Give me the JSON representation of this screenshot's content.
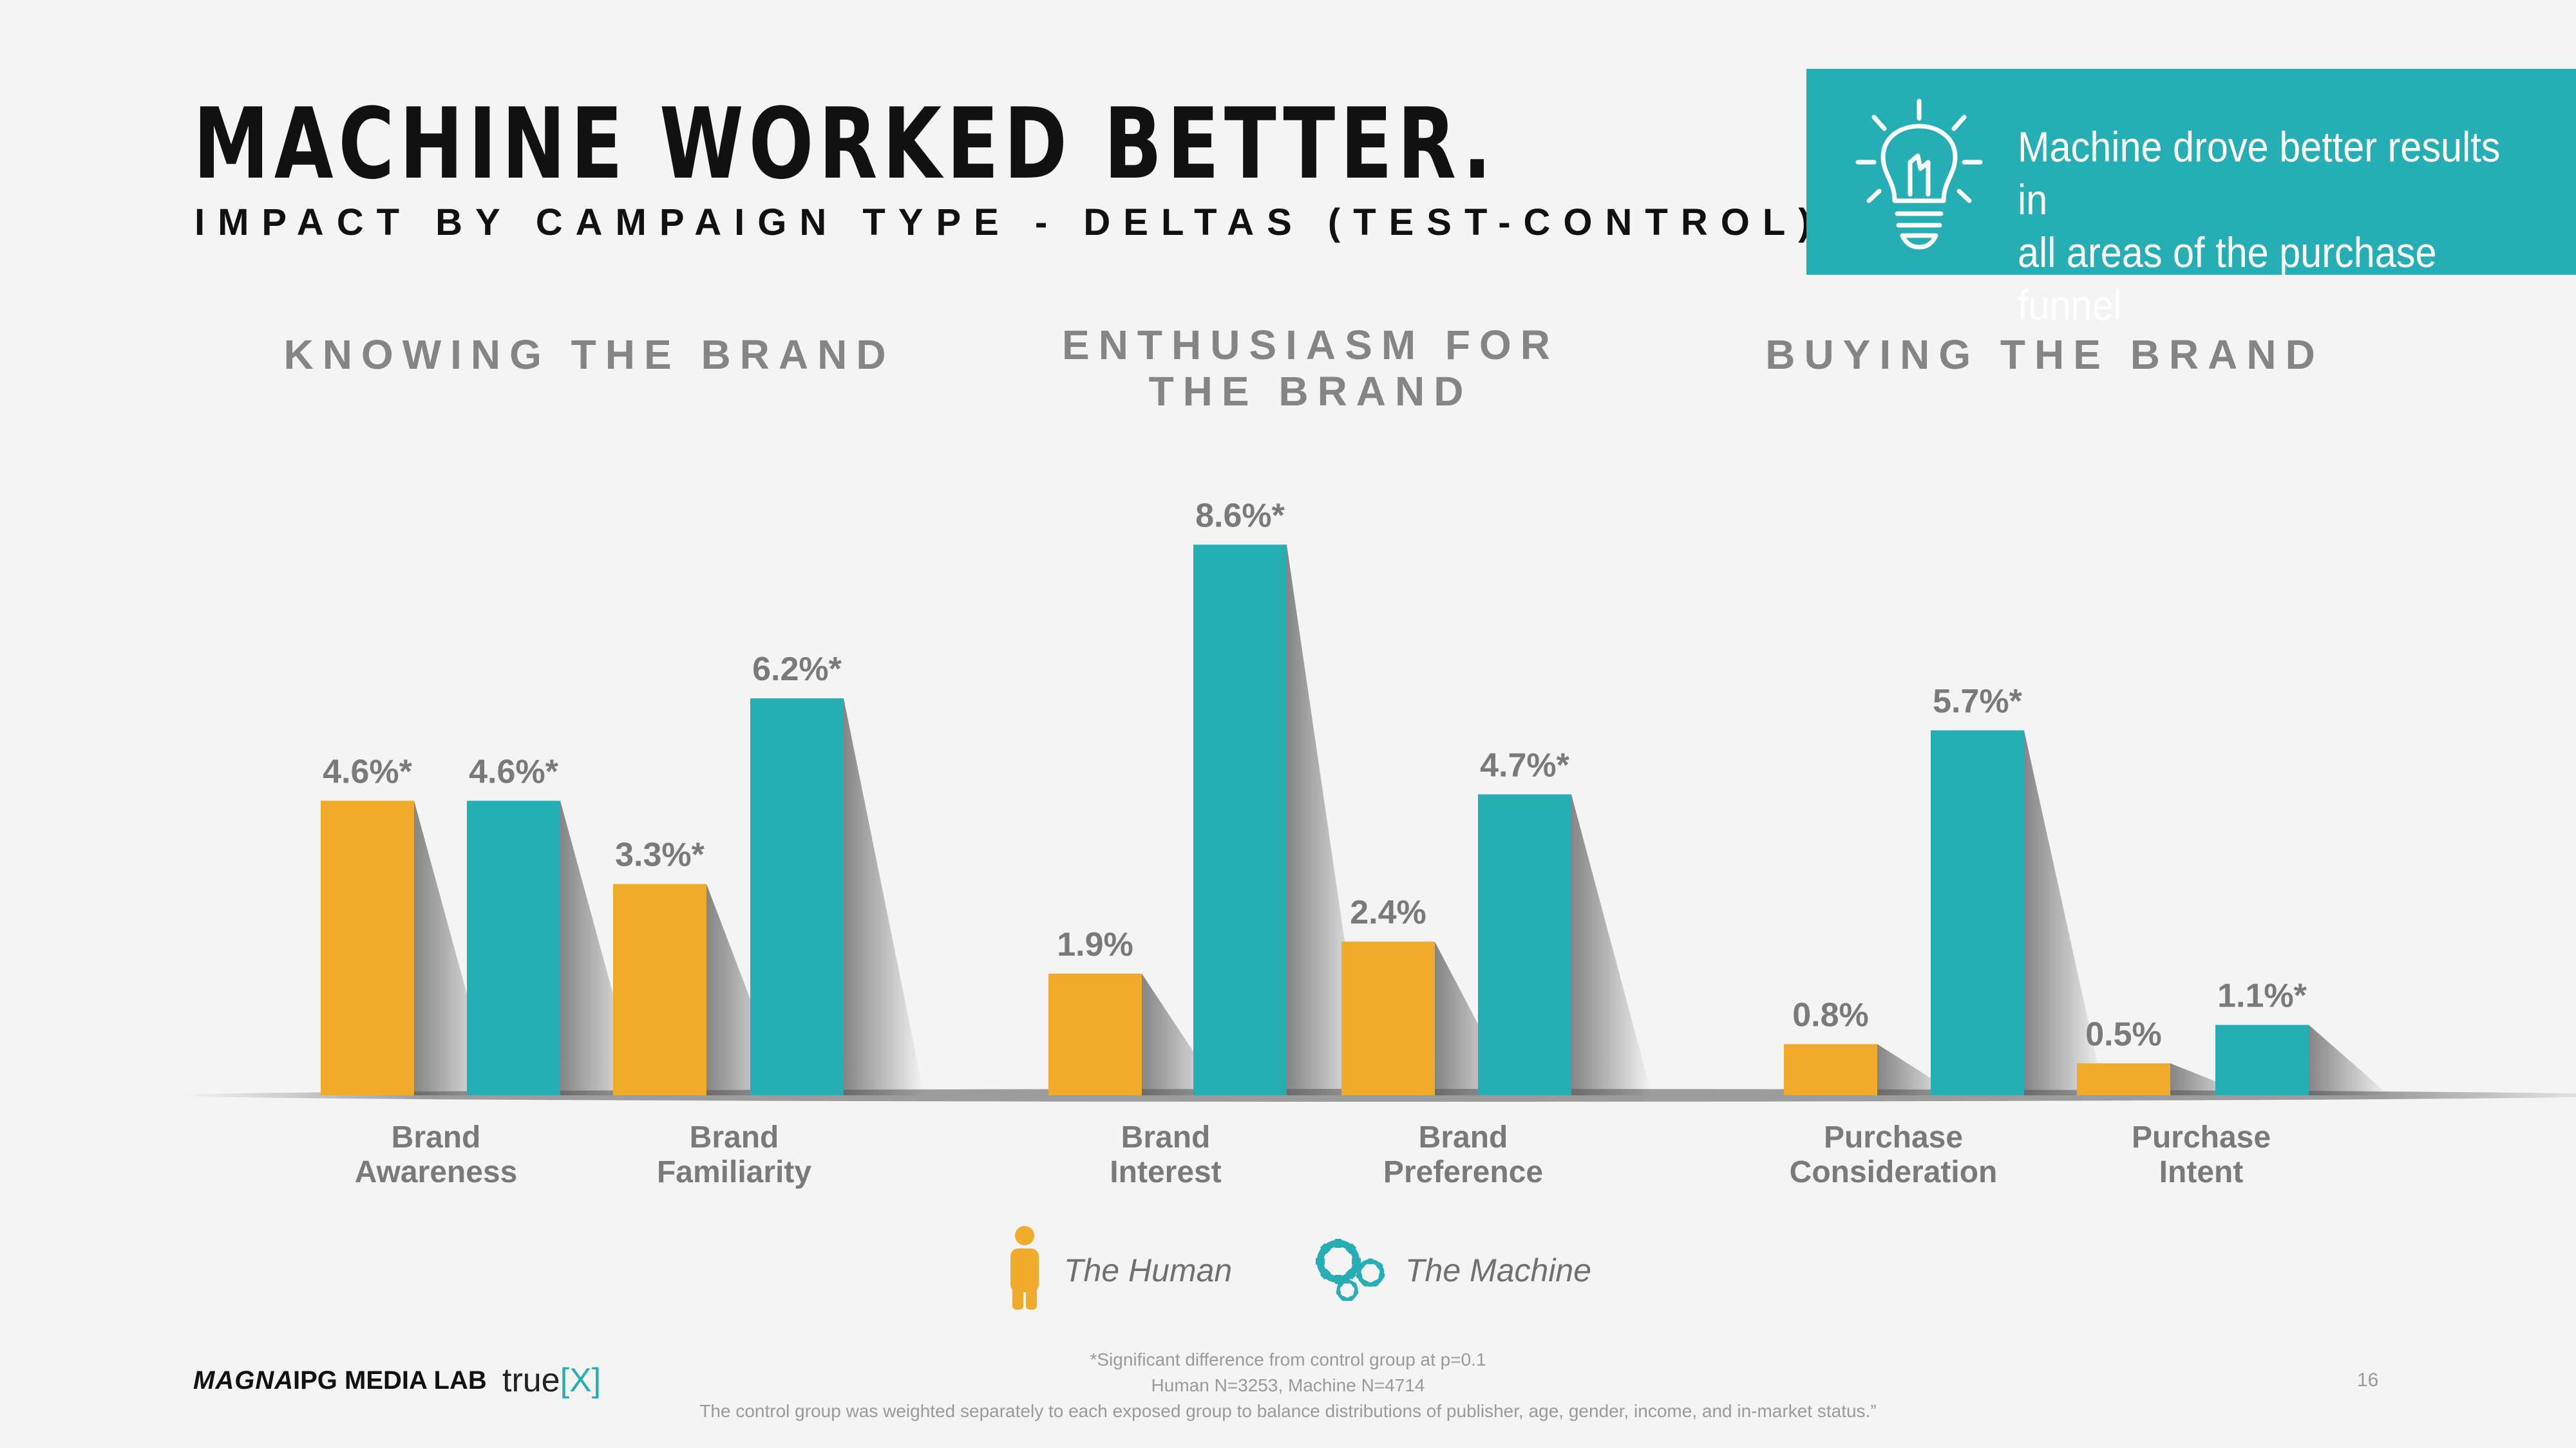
{
  "header": {
    "title": "MACHINE WORKED BETTER.",
    "subtitle": "IMPACT BY CAMPAIGN TYPE - DELTAS (TEST-CONTROL)"
  },
  "callout": {
    "icon": "lightbulb-icon",
    "line1": "Machine drove better results in",
    "line2": "all areas of the purchase funnel"
  },
  "sections": [
    {
      "line1": "KNOWING THE BRAND",
      "line2": ""
    },
    {
      "line1": "ENTHUSIASM FOR",
      "line2": "THE BRAND"
    },
    {
      "line1": "BUYING THE BRAND",
      "line2": ""
    }
  ],
  "chart_data": {
    "type": "bar",
    "categories": [
      {
        "line1": "Brand",
        "line2": "Awareness"
      },
      {
        "line1": "Brand",
        "line2": "Familiarity"
      },
      {
        "line1": "Brand",
        "line2": "Interest"
      },
      {
        "line1": "Brand",
        "line2": "Preference"
      },
      {
        "line1": "Purchase",
        "line2": "Consideration"
      },
      {
        "line1": "Purchase",
        "line2": "Intent"
      }
    ],
    "series": [
      {
        "name": "The Human",
        "color": "#f0ab2d",
        "values": [
          4.6,
          3.3,
          1.9,
          2.4,
          0.8,
          0.5
        ],
        "labels": [
          "4.6%*",
          "3.3%*",
          "1.9%",
          "2.4%",
          "0.8%",
          "0.5%"
        ]
      },
      {
        "name": "The Machine",
        "color": "#26aeb5",
        "values": [
          4.6,
          6.2,
          8.6,
          4.7,
          5.7,
          1.1
        ],
        "labels": [
          "4.6%*",
          "6.2%*",
          "8.6%*",
          "4.7%*",
          "5.7%*",
          "1.1%*"
        ]
      }
    ],
    "ylim": [
      0,
      10
    ],
    "grid": false,
    "legend": "bottom-center",
    "legend_icons": [
      "person-icon",
      "gears-icon"
    ]
  },
  "footnotes": {
    "line1": "*Significant difference from control group at p=0.1",
    "line2": "Human N=3253, Machine N=4714",
    "line3": "The control group was weighted separately to each exposed group to balance distributions of publisher, age, gender, income, and in-market status.”"
  },
  "logos": {
    "magna": "MAGNA",
    "ipg": "IPG MEDIA LAB",
    "truex_a": "true",
    "truex_b": "[X]"
  },
  "page_number": "16"
}
